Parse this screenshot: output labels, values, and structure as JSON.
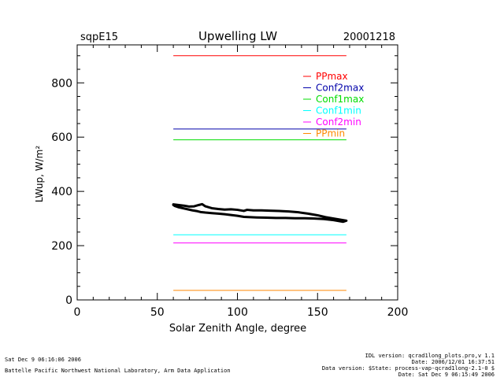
{
  "header": {
    "site": "sqpE15",
    "title": "Upwelling LW",
    "date": "20001218"
  },
  "footer": {
    "left_line1": "Sat Dec  9 06:16:06 2006",
    "left_line2": "Battelle Pacific Northwest National Laboratory, Arm Data Application",
    "right_line1": "IDL version: qcrad1long_plots.pro,v 1.1",
    "right_line2": "Date: 2006/12/01 16:37:51",
    "right_line3": "Data version: $State: process-vap-qcrad1long-2.1-0 $",
    "right_line4": "Date: Sat Dec  9 06:15:49 2006"
  },
  "chart_data": {
    "type": "line",
    "title": "Upwelling LW",
    "xlabel": "Solar Zenith Angle, degree",
    "ylabel": "LWup, W/m²",
    "xlim": [
      0,
      200
    ],
    "ylim": [
      0,
      940
    ],
    "x_ticks": [
      0,
      50,
      100,
      150,
      200
    ],
    "y_ticks": [
      0,
      200,
      400,
      600,
      800
    ],
    "grid": false,
    "legend_position": "upper-right",
    "series": [
      {
        "name": "PPmax",
        "color": "#ff0000",
        "x": [
          60,
          168
        ],
        "y": [
          900,
          900
        ]
      },
      {
        "name": "Conf2max",
        "color": "#0000aa",
        "x": [
          60,
          168
        ],
        "y": [
          630,
          630
        ]
      },
      {
        "name": "Conf1max",
        "color": "#00dd00",
        "x": [
          60,
          168
        ],
        "y": [
          590,
          590
        ]
      },
      {
        "name": "Conf1min",
        "color": "#00ffff",
        "x": [
          60,
          168
        ],
        "y": [
          240,
          240
        ]
      },
      {
        "name": "Conf2min",
        "color": "#ff00ff",
        "x": [
          60,
          168
        ],
        "y": [
          210,
          210
        ]
      },
      {
        "name": "PPmin",
        "color": "#ff8800",
        "x": [
          60,
          168
        ],
        "y": [
          35,
          35
        ]
      }
    ],
    "observations": {
      "color": "#000000",
      "x": [
        60,
        63,
        67,
        70,
        73,
        76,
        78,
        80,
        84,
        88,
        92,
        96,
        100,
        104,
        106,
        110,
        115,
        120,
        126,
        132,
        138,
        144,
        150,
        155,
        160,
        164,
        168,
        166,
        160,
        154,
        148,
        142,
        136,
        130,
        124,
        118,
        112,
        108,
        104,
        100,
        96,
        92,
        88,
        84,
        80,
        77,
        75,
        72,
        69,
        66,
        63,
        61,
        60
      ],
      "y": [
        352,
        350,
        347,
        344,
        345,
        350,
        353,
        345,
        338,
        335,
        333,
        334,
        332,
        328,
        332,
        330,
        330,
        329,
        328,
        326,
        323,
        318,
        312,
        305,
        300,
        296,
        292,
        288,
        294,
        298,
        300,
        301,
        301,
        302,
        302,
        303,
        304,
        305,
        306,
        310,
        313,
        316,
        318,
        320,
        322,
        324,
        327,
        330,
        334,
        338,
        342,
        346,
        350
      ]
    }
  }
}
